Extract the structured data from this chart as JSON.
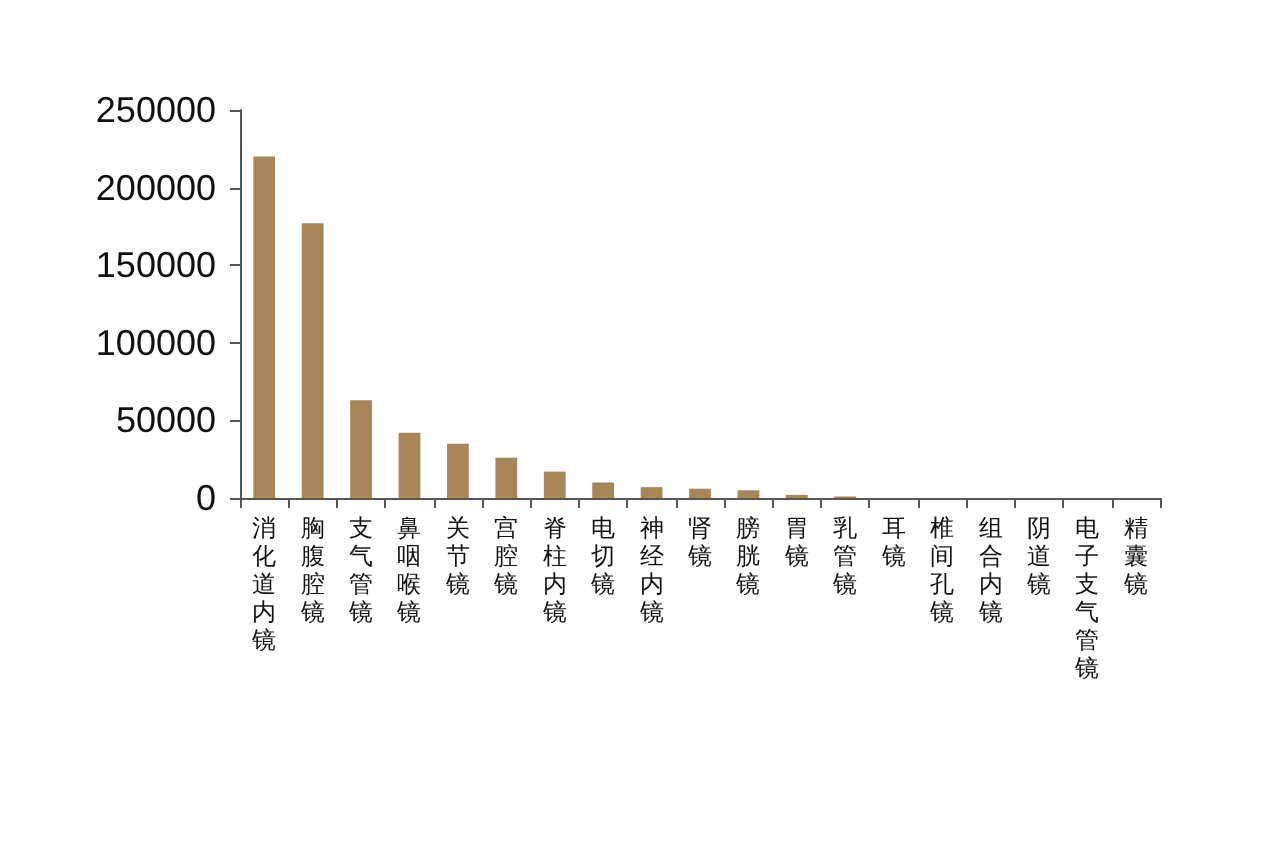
{
  "chart_data": {
    "type": "bar",
    "categories": [
      "消化道内镜",
      "胸腹腔镜",
      "支气管镜",
      "鼻咽喉镜",
      "关节镜",
      "宫腔镜",
      "脊柱内镜",
      "电切镜",
      "神经内镜",
      "肾镜",
      "膀胱镜",
      "胃镜",
      "乳管镜",
      "耳镜",
      "椎间孔镜",
      "组合内镜",
      "阴道镜",
      "电子支气管镜",
      "精囊镜"
    ],
    "values": [
      220000,
      177000,
      63000,
      42000,
      35000,
      26000,
      17000,
      10000,
      7000,
      6000,
      5000,
      2000,
      1000,
      0,
      0,
      0,
      0,
      0,
      0
    ],
    "color": "#a88659",
    "ylim": [
      0,
      250000
    ],
    "yticks": [
      0,
      50000,
      100000,
      150000,
      200000,
      250000
    ],
    "grid": false
  }
}
